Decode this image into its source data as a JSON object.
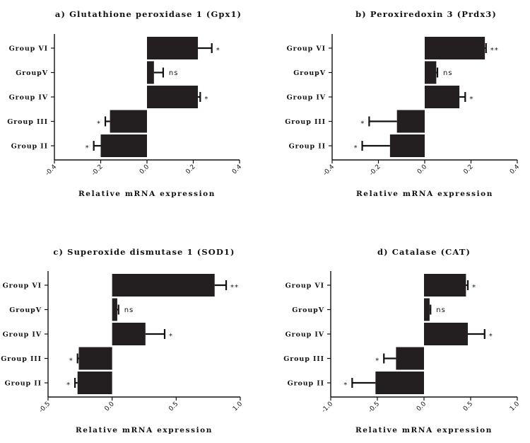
{
  "chart_data": [
    {
      "type": "bar",
      "orientation": "horizontal",
      "title": "a) Glutathione peroxidase 1 (Gpx1)",
      "xlabel": "Relative mRNA expression",
      "categories": [
        "Group VI",
        "GroupV",
        "Group IV",
        "Group III",
        "Group II"
      ],
      "values": [
        0.22,
        0.03,
        0.22,
        -0.16,
        -0.2
      ],
      "errors": [
        0.06,
        0.04,
        0.01,
        0.02,
        0.03
      ],
      "significance": [
        "*",
        "ns",
        "*",
        "*",
        "*"
      ],
      "xlim": [
        -0.4,
        0.4
      ],
      "xticks": [
        -0.4,
        -0.2,
        0.0,
        0.2,
        0.4
      ],
      "xtick_labels": [
        "-0.4",
        "-0.2",
        "0.0",
        "0.2",
        "0.4"
      ]
    },
    {
      "type": "bar",
      "orientation": "horizontal",
      "title": "b) Peroxiredoxin 3 (Prdx3)",
      "xlabel": "Relative mRNA expression",
      "categories": [
        "Group VI",
        "GroupV",
        "Group IV",
        "Group III",
        "Group II"
      ],
      "values": [
        0.26,
        0.05,
        0.15,
        -0.12,
        -0.15
      ],
      "errors": [
        0.005,
        0.005,
        0.025,
        0.12,
        0.12
      ],
      "significance": [
        "**",
        "ns",
        "*",
        "*",
        "*"
      ],
      "xlim": [
        -0.4,
        0.4
      ],
      "xticks": [
        -0.4,
        -0.2,
        0.0,
        0.2,
        0.4
      ],
      "xtick_labels": [
        "-0.4",
        "-0.2",
        "0.0",
        "0.2",
        "0.4"
      ]
    },
    {
      "type": "bar",
      "orientation": "horizontal",
      "title": "c) Superoxide dismutase 1 (SOD1)",
      "xlabel": "Relative mRNA expression",
      "categories": [
        "Group VI",
        "GroupV",
        "Group IV",
        "Group III",
        "Group II"
      ],
      "values": [
        0.8,
        0.04,
        0.26,
        -0.26,
        -0.27
      ],
      "errors": [
        0.09,
        0.01,
        0.15,
        0.01,
        0.02
      ],
      "significance": [
        "**",
        "ns",
        "*",
        "*",
        "*"
      ],
      "xlim": [
        -0.5,
        1.0
      ],
      "xticks": [
        -0.5,
        0.0,
        0.5,
        1.0
      ],
      "xtick_labels": [
        "-0.5",
        "0.0",
        "0.5",
        "1.0"
      ]
    },
    {
      "type": "bar",
      "orientation": "horizontal",
      "title": "d) Catalase (CAT)",
      "xlabel": "Relative mRNA expression",
      "categories": [
        "Group VI",
        "GroupV",
        "Group IV",
        "Group III",
        "Group II"
      ],
      "values": [
        0.45,
        0.06,
        0.47,
        -0.3,
        -0.52
      ],
      "errors": [
        0.02,
        0.01,
        0.18,
        0.13,
        0.25
      ],
      "significance": [
        "*",
        "ns",
        "*",
        "*",
        "*"
      ],
      "xlim": [
        -1.0,
        1.0
      ],
      "xticks": [
        -1.0,
        -0.5,
        0.0,
        0.5,
        1.0
      ],
      "xtick_labels": [
        "-1.0",
        "-0.5",
        "0.0",
        "0.5",
        "1.0"
      ]
    }
  ],
  "colors": {
    "bar": "#231f20",
    "axis": "#111111"
  }
}
